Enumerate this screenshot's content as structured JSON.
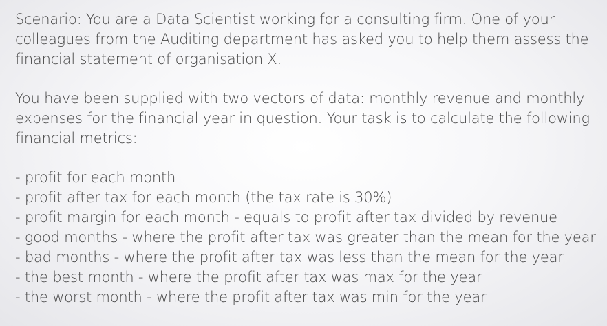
{
  "scenario": {
    "lines": [
      "Scenario: You are a Data Scientist working for a consulting firm. One of your",
      "colleagues from the Auditing department has asked you to help them assess the",
      "financial statement of organisation X."
    ]
  },
  "supplied": {
    "lines": [
      "You have been supplied with two vectors of data: monthly revenue and monthly",
      "expenses for the financial year in question. Your task is to calculate the following",
      "financial metrics:"
    ]
  },
  "metrics": [
    "- profit for each month",
    "- profit after tax for each month (the tax rate is 30%)",
    "- profit margin for each month - equals to profit after tax divided by revenue",
    "- good months - where the profit after tax was greater than the mean for the year",
    "- bad months - where the profit after tax was less than the mean for the year",
    "- the best month - where the profit after tax was max for the year",
    "- the worst month - where the profit after tax was min for the year"
  ]
}
